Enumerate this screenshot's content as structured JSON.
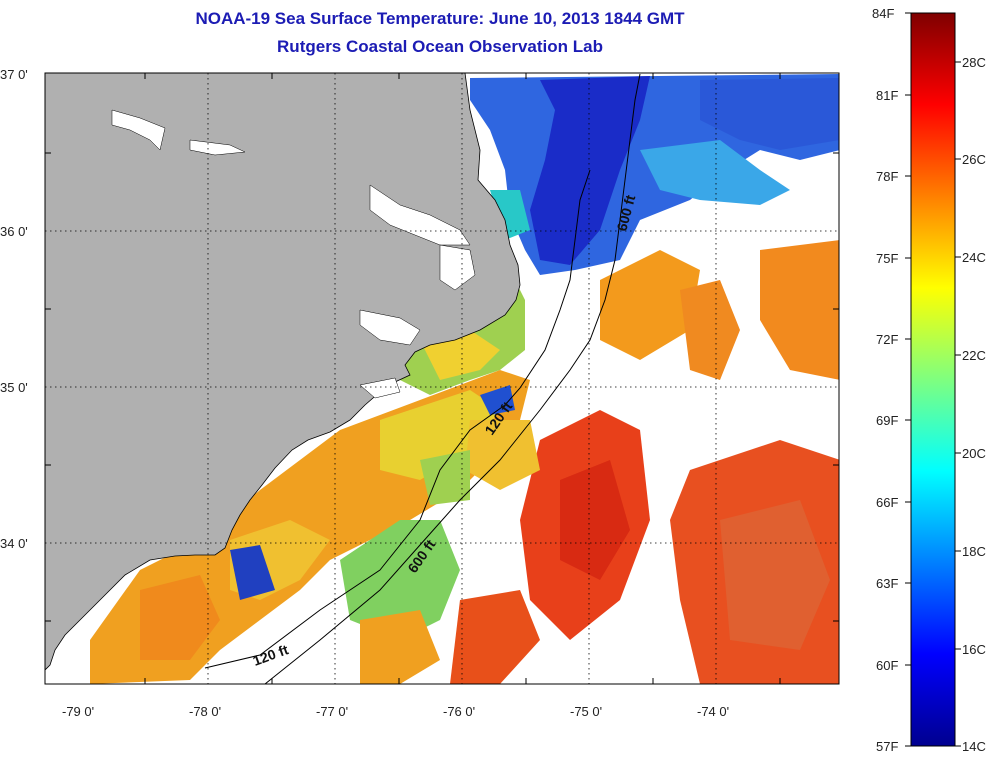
{
  "title": {
    "line1": "NOAA-19 Sea Surface Temperature:  June 10, 2013 1844 GMT",
    "line2": "Rutgers Coastal Ocean Observation Lab"
  },
  "map": {
    "latitude_labels": [
      "37 0'",
      "36 0'",
      "35 0'",
      "34 0'"
    ],
    "longitude_labels": [
      "-79 0'",
      "-78 0'",
      "-77 0'",
      "-76 0'",
      "-75 0'",
      "-74 0'"
    ],
    "depth_labels": [
      "600 ft",
      "120 ft",
      "600 ft",
      "120 ft"
    ],
    "colors": {
      "land": "#b0b0b0",
      "no_data": "#ffffff",
      "grid": "#000000"
    }
  },
  "colorbar": {
    "fahrenheit_labels": [
      "84F",
      "81F",
      "78F",
      "75F",
      "72F",
      "69F",
      "66F",
      "63F",
      "60F",
      "57F"
    ],
    "celsius_labels": [
      "28C",
      "26C",
      "24C",
      "22C",
      "20C",
      "18C",
      "16C",
      "14C"
    ],
    "range_f": [
      57,
      84
    ],
    "range_c": [
      14,
      29
    ],
    "colormap": "jet"
  }
}
